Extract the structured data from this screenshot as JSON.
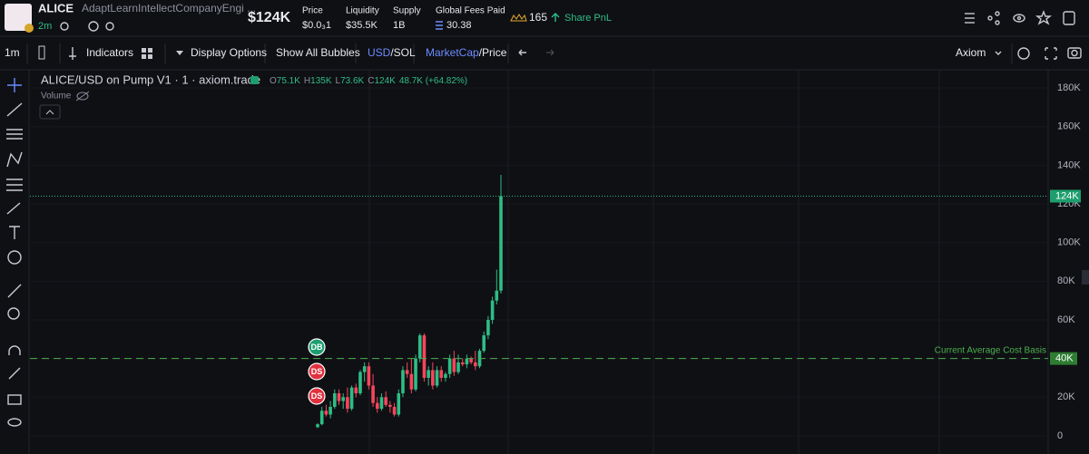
{
  "header": {
    "symbol": "ALICE",
    "name": "AdaptLearnIntellectCompanyEngi ...",
    "age": "2m",
    "market_cap": "$124K",
    "stats": [
      {
        "label": "Price",
        "value": "$0.0₃1"
      },
      {
        "label": "Liquidity",
        "value": "$35.5K"
      },
      {
        "label": "Supply",
        "value": "1B"
      },
      {
        "label": "Global Fees Paid",
        "value": "30.38"
      }
    ],
    "holders": "165",
    "share": "Share PnL"
  },
  "toolbar": {
    "interval": "1m",
    "indicators": "Indicators",
    "display": "Display Options",
    "bubbles": "Show All Bubbles",
    "currency": [
      "USD",
      "/SOL"
    ],
    "mode": [
      "MarketCap",
      "/Price"
    ],
    "source": "Axiom"
  },
  "chart_data": {
    "type": "candlestick",
    "title": "ALICE/USD on Pump V1 · 1 · axiom.trade",
    "legend": {
      "labels": [
        "O",
        "H",
        "L",
        "C"
      ],
      "values": [
        "75.1K",
        "135K",
        "73.6K",
        "124K"
      ],
      "change": "48.7K (+64.82%)"
    },
    "volume_label": "Volume",
    "open": [
      4500,
      6000,
      13000,
      11000,
      15000,
      22000,
      18000,
      20000,
      14000,
      25000,
      22000,
      33000,
      36000,
      26000,
      17000,
      14000,
      20000,
      16000,
      15000,
      11000,
      22000,
      34000,
      32000,
      24000,
      40000,
      52000,
      30000,
      34000,
      26000,
      34000,
      30000,
      32000,
      40000,
      33000,
      38000,
      37000,
      40000,
      38000,
      36000,
      44000,
      52000,
      60000,
      70000,
      75100
    ],
    "high": [
      6500,
      15000,
      16000,
      18000,
      24000,
      24000,
      22000,
      25000,
      26000,
      27000,
      34000,
      38000,
      38000,
      32000,
      20000,
      22000,
      23000,
      18000,
      17000,
      24000,
      36000,
      38000,
      40000,
      42000,
      53000,
      53000,
      36000,
      38000,
      36000,
      36000,
      33000,
      42000,
      44000,
      42000,
      40000,
      42000,
      41000,
      44000,
      45000,
      54000,
      62000,
      72000,
      86000,
      135000
    ],
    "low": [
      4000,
      5500,
      10000,
      9000,
      14000,
      16000,
      14000,
      12000,
      13000,
      20000,
      21000,
      28000,
      24000,
      15000,
      12000,
      13000,
      15000,
      12000,
      10000,
      10000,
      20000,
      30000,
      22000,
      23000,
      38000,
      28000,
      26000,
      24000,
      25000,
      28000,
      28000,
      30000,
      31000,
      32000,
      36000,
      35000,
      37000,
      34000,
      35000,
      43000,
      50000,
      58000,
      68000,
      73600
    ],
    "close": [
      6000,
      13000,
      11000,
      15000,
      22000,
      18000,
      20000,
      14000,
      25000,
      22000,
      33000,
      36000,
      26000,
      17000,
      14000,
      20000,
      16000,
      15000,
      11000,
      22000,
      34000,
      32000,
      24000,
      40000,
      52000,
      30000,
      34000,
      26000,
      34000,
      30000,
      32000,
      40000,
      33000,
      38000,
      37000,
      40000,
      38000,
      36000,
      44000,
      52000,
      60000,
      70000,
      75100,
      124000
    ],
    "up_color": "#2ebd85",
    "down_color": "#f6465d",
    "ylim": [
      -9400,
      189400
    ],
    "yticks": [
      0,
      {
        "value": 20000,
        "label": "20K"
      },
      {
        "value": 40000,
        "label": "40K"
      },
      {
        "value": 60000,
        "label": "60K"
      },
      {
        "value": 80000,
        "label": "80K"
      },
      {
        "value": 100000,
        "label": "100K"
      },
      {
        "value": 120000,
        "label": "120K"
      },
      {
        "value": 140000,
        "label": "140K"
      },
      {
        "value": 160000,
        "label": "160K"
      },
      {
        "value": 180000,
        "label": "180K"
      }
    ],
    "price_line": {
      "value": 124000,
      "label": "124K"
    },
    "cost_basis": {
      "value": 40000,
      "label": "40K",
      "text": "Current Average Cost Basis"
    },
    "markers": [
      {
        "label": "DB",
        "color": "#1e9e6f"
      },
      {
        "label": "DS",
        "color": "#e0313f"
      },
      {
        "label": "DS",
        "color": "#e0313f"
      }
    ]
  }
}
